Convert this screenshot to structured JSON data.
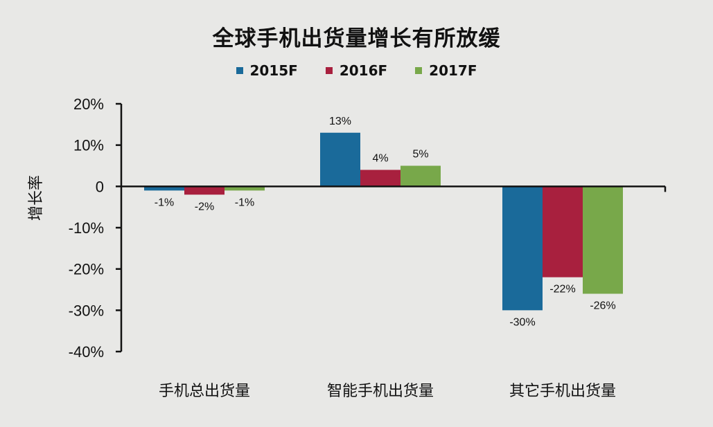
{
  "chart_data": {
    "type": "bar",
    "title": "全球手机出货量增长有所放缓",
    "xlabel": "",
    "ylabel": "增长率",
    "ylim": [
      -40,
      20
    ],
    "yticks": [
      20,
      10,
      0,
      -10,
      -20,
      -30,
      -40
    ],
    "ytick_labels": [
      "20%",
      "10%",
      "0",
      "-10%",
      "-20%",
      "-30%",
      "-40%"
    ],
    "categories": [
      "手机总出货量",
      "智能手机出货量",
      "其它手机出货量"
    ],
    "legend_position": "top-center",
    "series": [
      {
        "name": "2015F",
        "color": "#1a6a9a",
        "values": [
          -1,
          13,
          -30
        ],
        "labels": [
          "-1%",
          "13%",
          "-30%"
        ]
      },
      {
        "name": "2016F",
        "color": "#a8203e",
        "values": [
          -2,
          4,
          -22
        ],
        "labels": [
          "-2%",
          "4%",
          "-22%"
        ]
      },
      {
        "name": "2017F",
        "color": "#78a84a",
        "values": [
          -1,
          5,
          -26
        ],
        "labels": [
          "-1%",
          "5%",
          "-26%"
        ]
      }
    ]
  }
}
